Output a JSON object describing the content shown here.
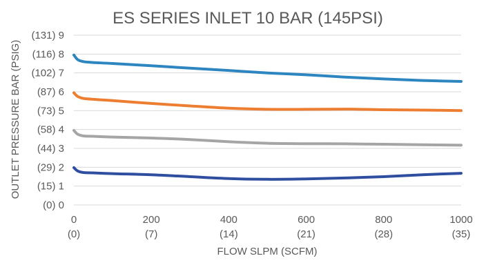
{
  "chart_data": {
    "type": "line",
    "title": "ES SERIES INLET 10 BAR (145PSI)",
    "xlabel": "FLOW SLPM (SCFM)",
    "ylabel": "OUTLET PRESSURE BAR (PSIG)",
    "xlim": [
      0,
      1000
    ],
    "ylim": [
      0,
      9
    ],
    "grid": "horizontal",
    "x_ticks": [
      {
        "value": 0,
        "label": "0",
        "sublabel": "(0)"
      },
      {
        "value": 200,
        "label": "200",
        "sublabel": "(7)"
      },
      {
        "value": 400,
        "label": "400",
        "sublabel": "(14)"
      },
      {
        "value": 600,
        "label": "600",
        "sublabel": "(21)"
      },
      {
        "value": 800,
        "label": "800",
        "sublabel": "(28)"
      },
      {
        "value": 1000,
        "label": "1000",
        "sublabel": "(35)"
      }
    ],
    "y_ticks": [
      {
        "value": 0,
        "label": "(0)  0"
      },
      {
        "value": 1,
        "label": "(15)  1"
      },
      {
        "value": 2,
        "label": "(29)  2"
      },
      {
        "value": 3,
        "label": "(44)  3"
      },
      {
        "value": 4,
        "label": "(58)  4"
      },
      {
        "value": 5,
        "label": "(73)  5"
      },
      {
        "value": 6,
        "label": "(87)  6"
      },
      {
        "value": 7,
        "label": "(102)  7"
      },
      {
        "value": 8,
        "label": "(116)  8"
      },
      {
        "value": 9,
        "label": "(131)  9"
      }
    ],
    "series": [
      {
        "color": "#2e86c1",
        "x": [
          0,
          10,
          25,
          50,
          100,
          200,
          300,
          400,
          500,
          600,
          700,
          800,
          900,
          1000
        ],
        "y": [
          7.95,
          7.7,
          7.6,
          7.55,
          7.5,
          7.38,
          7.25,
          7.13,
          7.0,
          6.9,
          6.78,
          6.68,
          6.6,
          6.55
        ]
      },
      {
        "color": "#ed7d31",
        "x": [
          0,
          10,
          25,
          50,
          100,
          200,
          300,
          400,
          500,
          600,
          700,
          800,
          900,
          1000
        ],
        "y": [
          5.95,
          5.75,
          5.65,
          5.6,
          5.53,
          5.38,
          5.25,
          5.13,
          5.07,
          5.07,
          5.08,
          5.05,
          5.03,
          5.0
        ]
      },
      {
        "color": "#a5a5a5",
        "x": [
          0,
          10,
          25,
          50,
          100,
          200,
          300,
          400,
          500,
          600,
          700,
          800,
          900,
          1000
        ],
        "y": [
          3.95,
          3.75,
          3.66,
          3.64,
          3.6,
          3.55,
          3.47,
          3.35,
          3.27,
          3.25,
          3.24,
          3.22,
          3.19,
          3.17
        ]
      },
      {
        "color": "#2f4ea0",
        "x": [
          0,
          10,
          25,
          50,
          100,
          200,
          300,
          400,
          500,
          600,
          700,
          800,
          900,
          1000
        ],
        "y": [
          1.98,
          1.8,
          1.72,
          1.7,
          1.66,
          1.6,
          1.5,
          1.4,
          1.36,
          1.38,
          1.43,
          1.5,
          1.6,
          1.68
        ]
      }
    ]
  }
}
